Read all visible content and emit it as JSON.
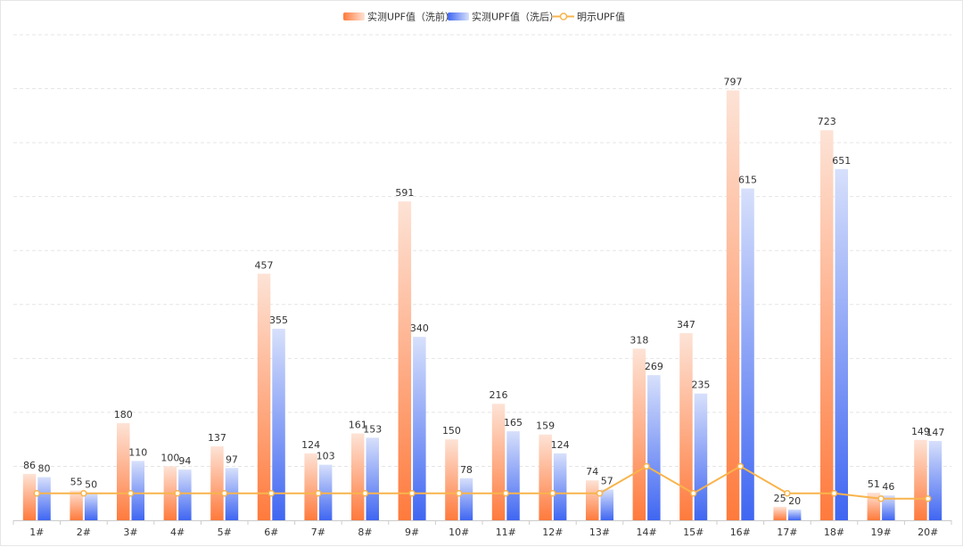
{
  "chart_data": {
    "type": "bar",
    "title": "",
    "xlabel": "",
    "ylabel": "",
    "ylim": [
      0,
      900
    ],
    "grid": true,
    "legend_position": "top-center",
    "categories": [
      "1#",
      "2#",
      "3#",
      "4#",
      "5#",
      "6#",
      "7#",
      "8#",
      "9#",
      "10#",
      "11#",
      "12#",
      "13#",
      "14#",
      "15#",
      "16#",
      "17#",
      "18#",
      "19#",
      "20#"
    ],
    "series": [
      {
        "name": "实测UPF值（洗前）",
        "type": "bar",
        "colors": {
          "top": "#fde3d6",
          "bottom": "#ff7a3c"
        },
        "values": [
          86,
          55,
          180,
          100,
          137,
          457,
          124,
          161,
          591,
          150,
          216,
          159,
          74,
          318,
          347,
          797,
          25,
          723,
          51,
          149
        ]
      },
      {
        "name": "实测UPF值（洗后）",
        "type": "bar",
        "colors": {
          "top": "#d7e0fb",
          "bottom": "#3f66f2"
        },
        "values": [
          80,
          50,
          110,
          94,
          97,
          355,
          103,
          153,
          340,
          78,
          165,
          124,
          57,
          269,
          235,
          615,
          20,
          651,
          46,
          147
        ]
      },
      {
        "name": "明示UPF值",
        "type": "line",
        "colors": {
          "line": "#f8b44c",
          "marker_fill": "#ffffff"
        },
        "values": [
          50,
          50,
          50,
          50,
          50,
          50,
          50,
          50,
          50,
          50,
          50,
          50,
          50,
          100,
          50,
          100,
          50,
          50,
          40,
          40
        ]
      }
    ]
  }
}
